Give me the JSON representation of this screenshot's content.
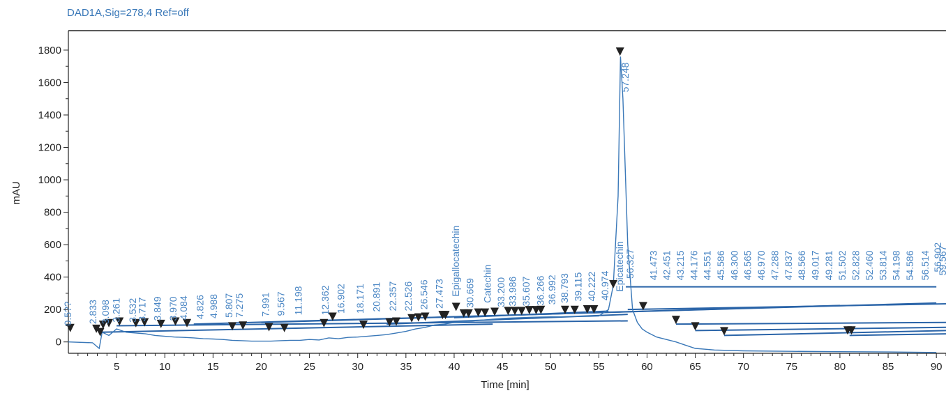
{
  "chart_data": {
    "type": "line",
    "title": "DAD1A,Sig=278,4  Ref=off",
    "xlabel": "Time [min]",
    "ylabel": "mAU",
    "xlim": [
      0,
      91
    ],
    "ylim": [
      -70,
      1920
    ],
    "x_ticks": [
      5,
      10,
      15,
      20,
      25,
      30,
      35,
      40,
      45,
      50,
      55,
      60,
      65,
      70,
      75,
      80,
      85,
      90
    ],
    "y_ticks": [
      0,
      200,
      400,
      600,
      800,
      1000,
      1200,
      1400,
      1600,
      1800
    ],
    "series": [
      {
        "x": [
          0,
          2.5,
          3.2,
          3.5,
          4.2,
          5,
          6,
          7,
          8,
          9,
          10,
          11,
          12,
          13,
          14,
          15,
          16,
          17,
          18,
          19,
          20,
          21,
          22,
          23,
          24,
          25,
          26,
          27,
          28,
          29,
          30,
          31,
          32,
          33,
          34,
          35,
          36,
          37,
          38,
          39,
          40,
          41,
          42,
          43,
          44,
          45,
          46,
          47,
          48,
          49,
          50,
          51,
          52,
          53,
          54,
          55,
          56,
          56.5,
          57,
          57.25,
          57.5,
          58,
          58.5,
          59,
          59.5,
          60,
          61,
          62,
          63,
          64,
          65,
          67,
          70,
          75,
          80,
          85,
          90
        ],
        "y": [
          0,
          -5,
          -40,
          60,
          40,
          80,
          60,
          55,
          50,
          40,
          35,
          30,
          28,
          25,
          20,
          18,
          15,
          10,
          8,
          5,
          5,
          5,
          8,
          10,
          10,
          15,
          12,
          25,
          20,
          28,
          30,
          35,
          40,
          45,
          55,
          65,
          80,
          90,
          105,
          110,
          120,
          125,
          130,
          135,
          140,
          145,
          148,
          150,
          152,
          154,
          155,
          155,
          156,
          157,
          158,
          160,
          200,
          350,
          900,
          1760,
          1500,
          600,
          200,
          120,
          80,
          60,
          30,
          15,
          0,
          -20,
          -40,
          -50,
          -55,
          -58,
          -60,
          -62,
          -65
        ]
      }
    ],
    "peak_labels": [
      "0.5??",
      "2.833",
      "3.098",
      "3.261",
      "3.532",
      "3.717",
      "3.849",
      "3.970",
      "4.084",
      "4.826",
      "4.988",
      "5.807",
      "7.275",
      "7.991",
      "9.567",
      "11.198",
      "12.362",
      "16.902",
      "18.171",
      "20.891",
      "22.357",
      "22.526",
      "26.546",
      "27.473",
      "Epigallocatechin",
      "30.669",
      "Catechin",
      "33.200",
      "33.986",
      "35.607",
      "36.266",
      "36.992",
      "38.793",
      "39.115",
      "40.222",
      "40.974",
      "Epicatechin",
      "56.327",
      "57.248",
      "41.473",
      "42.451",
      "43.215",
      "44.176",
      "44.551",
      "45.586",
      "46.300",
      "46.565",
      "46.970",
      "47.288",
      "47.837",
      "48.566",
      "49.017",
      "49.281",
      "51.502",
      "52.828",
      "52.460",
      "53.814",
      "54.198",
      "54.586",
      "56.514",
      "56.902",
      "59.567"
    ],
    "grid": false,
    "legend": "none"
  }
}
